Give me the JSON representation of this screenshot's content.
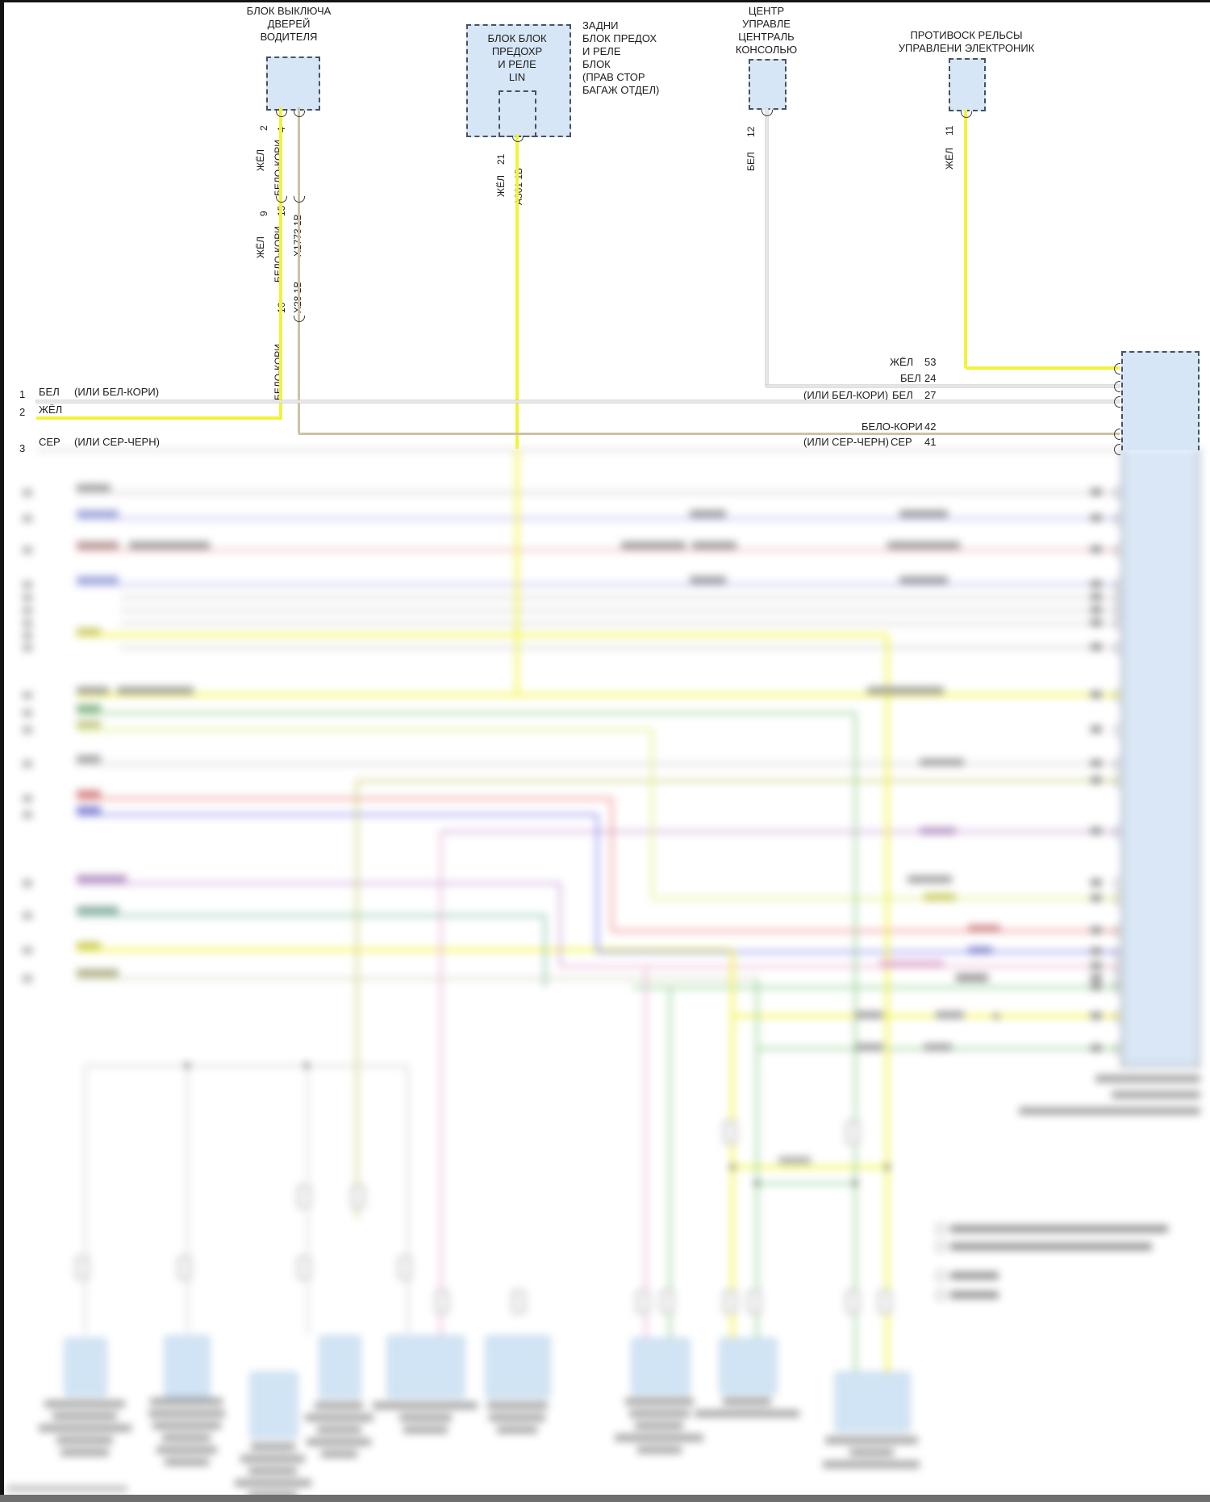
{
  "blocks": {
    "driver_door": {
      "lines": [
        "БЛОК ВЫКЛЮЧА",
        "ДВЕРЕЙ",
        "ВОДИТЕЛЯ"
      ]
    },
    "lin": {
      "lines": [
        "БЛОК БЛОК",
        "ПРЕДОХР",
        "И РЕЛЕ",
        "LIN"
      ]
    },
    "rear_fuse": {
      "lines": [
        "ЗАДНИ",
        "БЛОК ПРЕДОХ",
        "И РЕЛЕ",
        "БЛОК",
        "(ПРАВ СТОР",
        "БАГАЖ ОТДЕЛ)"
      ]
    },
    "center_console": {
      "lines": [
        "ЦЕНТР",
        "УПРАВЛЕ",
        "ЦЕНТРАЛЬ",
        "КОНСОЛЬЮ"
      ]
    },
    "esc": {
      "lines": [
        "ПРОТИВОСК РЕЛЬСЫ",
        "УПРАВЛЕНИ ЭЛЕКТРОНИК"
      ]
    }
  },
  "pins": {
    "p2": "2",
    "p4": "4",
    "p9": "9",
    "p15": "15",
    "p16": "16",
    "p21": "21",
    "p12": "12",
    "p11": "11",
    "p53": "53",
    "p24": "24",
    "p27": "27",
    "p42": "42",
    "p41": "41",
    "r1": "1",
    "r2": "2",
    "r3": "3"
  },
  "wire_labels": {
    "zhel": "ЖЁЛ",
    "belo_kori": "БЕЛО-КОРИ",
    "bel": "БЕЛ",
    "ser": "СЕР",
    "alt_bel_kori": "(ИЛИ БЕЛ-КОРИ)",
    "alt_ser_chern": "(ИЛИ СЕР-ЧЕРН)"
  },
  "connectors": {
    "c1": "X1773 1В",
    "c2": "X28 1В",
    "c3": "А361 1В"
  },
  "colors": {
    "yellow": "#f2f23c",
    "tan": "#cdc3a2",
    "white_wire": "#e6e6e6",
    "box_fill": "#d7e6f6",
    "box_border": "#46525f",
    "periwinkle": "#b6baec",
    "red": "#ee8888",
    "pale_red": "#eeb4b4",
    "blue": "#8585ee",
    "green": "#90cf90",
    "yellow_green": "#dff07e",
    "olive": "#cfcf7c",
    "purple": "#c9a2da",
    "pink": "#eab2d6",
    "teal": "#84bfa9"
  }
}
